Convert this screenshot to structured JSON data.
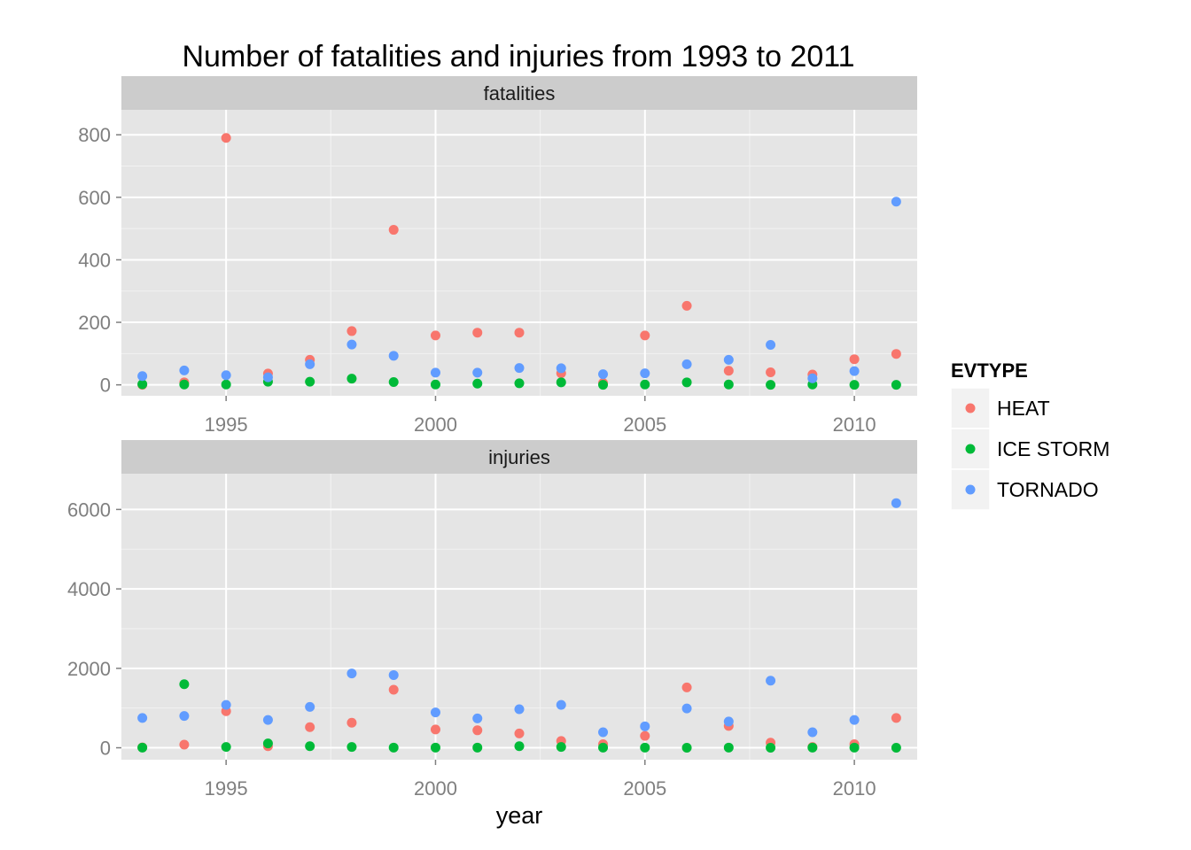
{
  "chart_data": {
    "type": "scatter",
    "title": "Number of fatalities and injuries from 1993 to 2011",
    "xlabel": "year",
    "ylabel": "",
    "legend": {
      "title": "EVTYPE",
      "placement": "right"
    },
    "colors": {
      "HEAT": "#F8766D",
      "ICE STORM": "#00BA38",
      "TORNADO": "#619CFF"
    },
    "x": [
      1993,
      1994,
      1995,
      1996,
      1997,
      1998,
      1999,
      2000,
      2001,
      2002,
      2003,
      2004,
      2005,
      2006,
      2007,
      2008,
      2009,
      2010,
      2011
    ],
    "xlim": [
      1992.5,
      2011.5
    ],
    "xticks": [
      1995,
      2000,
      2005,
      2010
    ],
    "grid": true,
    "panels": [
      {
        "name": "fatalities",
        "ylim": [
          -35,
          880
        ],
        "yticks": [
          0,
          200,
          400,
          600,
          800
        ],
        "series": [
          {
            "name": "HEAT",
            "values": [
              0,
              8,
              790,
              36,
              80,
              172,
              496,
              158,
              167,
              167,
              37,
              6,
              158,
              253,
              45,
              40,
              33,
              82,
              99
            ]
          },
          {
            "name": "ICE STORM",
            "values": [
              2,
              1,
              1,
              10,
              10,
              20,
              9,
              1,
              4,
              5,
              8,
              0,
              1,
              8,
              1,
              0,
              1,
              0,
              0
            ]
          },
          {
            "name": "TORNADO",
            "values": [
              28,
              46,
              31,
              24,
              66,
              129,
              93,
              39,
              39,
              54,
              53,
              34,
              37,
              66,
              80,
              128,
              21,
              44,
              586
            ]
          }
        ]
      },
      {
        "name": "injuries",
        "ylim": [
          -300,
          6900
        ],
        "yticks": [
          0,
          2000,
          4000,
          6000
        ],
        "series": [
          {
            "name": "HEAT",
            "values": [
              10,
              80,
              920,
              40,
              520,
              630,
              1460,
              460,
              440,
              360,
              170,
              90,
              300,
              1520,
              550,
              130,
              20,
              90,
              750
            ]
          },
          {
            "name": "ICE STORM",
            "values": [
              5,
              1600,
              20,
              110,
              40,
              20,
              5,
              5,
              5,
              40,
              20,
              5,
              5,
              0,
              5,
              0,
              5,
              5,
              0
            ]
          },
          {
            "name": "TORNADO",
            "values": [
              750,
              800,
              1080,
              700,
              1030,
              1870,
              1830,
              890,
              740,
              970,
              1080,
              390,
              540,
              990,
              660,
              1690,
              390,
              700,
              6160
            ]
          }
        ]
      }
    ]
  }
}
